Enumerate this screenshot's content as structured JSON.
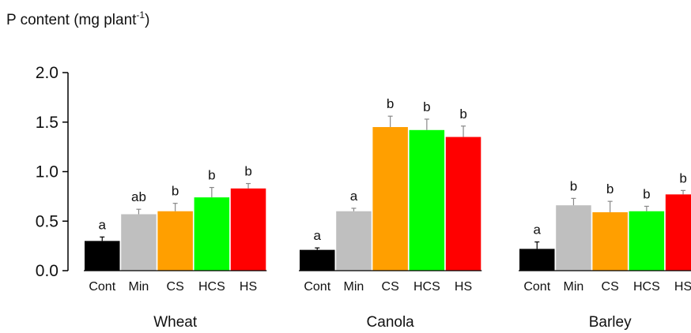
{
  "chart_data": {
    "type": "bar",
    "ylabel": "P content (mg plant",
    "ylabel_sup": "-1",
    "ylabel_close": ")",
    "ylim": [
      0,
      2.0
    ],
    "yticks": [
      "0.0",
      "0.5",
      "1.0",
      "1.5",
      "2.0"
    ],
    "categories": [
      "Cont",
      "Min",
      "CS",
      "HCS",
      "HS"
    ],
    "colors": [
      "#000000",
      "#bfbfbf",
      "#ff9f00",
      "#00ff00",
      "#ff0000"
    ],
    "groups": [
      {
        "name": "Wheat",
        "values": [
          0.3,
          0.57,
          0.6,
          0.74,
          0.83
        ],
        "errors": [
          0.04,
          0.05,
          0.08,
          0.1,
          0.05
        ],
        "letters": [
          "a",
          "ab",
          "b",
          "b",
          "b"
        ]
      },
      {
        "name": "Canola",
        "values": [
          0.21,
          0.6,
          1.45,
          1.42,
          1.35
        ],
        "errors": [
          0.02,
          0.03,
          0.11,
          0.11,
          0.11
        ],
        "letters": [
          "a",
          "a",
          "b",
          "b",
          "b"
        ]
      },
      {
        "name": "Barley",
        "values": [
          0.22,
          0.66,
          0.59,
          0.6,
          0.77
        ],
        "errors": [
          0.07,
          0.07,
          0.11,
          0.05,
          0.04
        ],
        "letters": [
          "a",
          "b",
          "b",
          "b",
          "b"
        ]
      }
    ]
  }
}
